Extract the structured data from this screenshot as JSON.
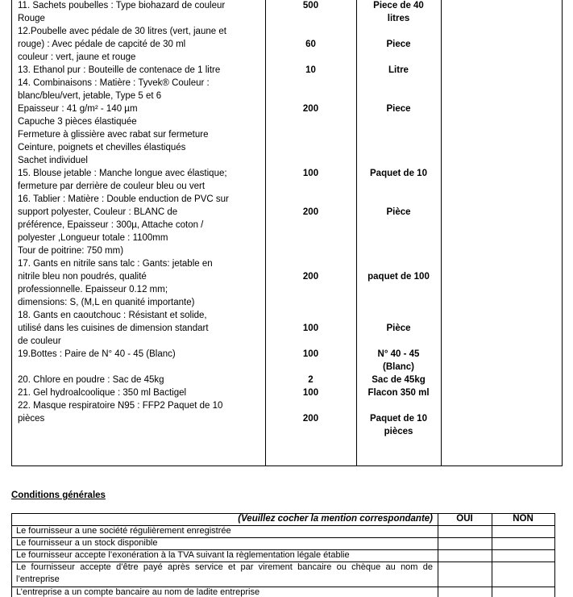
{
  "items": [
    {
      "description": [
        "11. Sachets poubelles : Type biohazard de couleur",
        "Rouge"
      ],
      "quantity": 500,
      "unit": [
        "Piece de 40",
        "litres"
      ]
    },
    {
      "description": [
        "12.Poubelle avec pédale de 30 litres (vert, jaune et",
        "rouge) : Avec pédale de capcité de 30 ml",
        "couleur : vert, jaune et rouge"
      ],
      "quantity": 60,
      "unit": [
        "Piece"
      ]
    },
    {
      "description": [
        "13. Ethanol pur : Bouteille de contenace de 1 litre"
      ],
      "quantity": 10,
      "unit": [
        "Litre"
      ]
    },
    {
      "description": [
        "14. Combinaisons : Matière : Tyvek® Couleur :",
        "blanc/bleu/vert, jetable, Type 5 et 6",
        "Epaisseur : 41 g/m² - 140 µm",
        "Capuche 3 pièces élastiquée",
        "Fermeture à glissière avec rabat sur fermeture",
        "Ceinture, poignets et chevilles élastiqués",
        "Sachet individuel"
      ],
      "quantity": 200,
      "unit": [
        "Piece"
      ]
    },
    {
      "description": [
        "15. Blouse jetable : Manche longue avec élastique;",
        "fermeture par derrière de couleur bleu ou vert"
      ],
      "quantity": 100,
      "unit": [
        "Paquet de 10"
      ]
    },
    {
      "description": [
        "16. Tablier : Matière : Double enduction de PVC sur",
        "support polyester, Couleur : BLANC de",
        "préférence, Epaisseur : 300µ, Attache coton /",
        "polyester ,Longueur totale : 1100mm",
        "Tour de poitrine: 750 mm)"
      ],
      "quantity": 200,
      "unit": [
        "Pièce"
      ]
    },
    {
      "description": [
        "17. Gants en nitrile sans talc : Gants: jetable en",
        "nitrile bleu non poudrés, qualité",
        "professionnelle. Epaisseur 0.12 mm;",
        "dimensions: S, (M,L en quanité importante)"
      ],
      "quantity": 200,
      "unit": [
        "paquet de 100"
      ]
    },
    {
      "description": [
        "18. Gants en caoutchouc : Résistant et solide,",
        "utilisé dans les cuisines de dimension standart",
        "de couleur"
      ],
      "quantity": 100,
      "unit": [
        "Pièce"
      ]
    },
    {
      "description": [
        "19.Bottes : Paire de N° 40 - 45 (Blanc)"
      ],
      "quantity": 100,
      "unit": [
        "N° 40 - 45",
        "(Blanc)"
      ]
    },
    {
      "description": [
        "20. Chlore en poudre : Sac de 45kg"
      ],
      "quantity": 2,
      "unit": [
        "Sac de 45kg"
      ]
    },
    {
      "description": [
        "21. Gel hydroalcoolique : 350 ml Bactigel"
      ],
      "quantity": 100,
      "unit": [
        "Flacon 350 ml"
      ]
    },
    {
      "description": [
        "22. Masque respiratoire N95 : FFP2 Paquet de 10",
        "pièces"
      ],
      "quantity": 200,
      "unit": [
        "Paquet de 10",
        "pièces"
      ]
    }
  ],
  "conditions": {
    "title": "Conditions générales",
    "header": {
      "note": "(Veuillez cocher la mention correspondante)",
      "yes": "OUI",
      "no": "NON"
    },
    "rows": [
      "Le fournisseur a une société régulièrement enregistrée",
      "Le fournisseur a un stock disponible",
      "Le fournisseur accepte l’exonération à la TVA suivant la règlementation légale établie",
      "Le fournisseur accepte d’être payé après service et par virement bancaire ou chèque au nom de l’entreprise",
      "L’entreprise a un compte bancaire au nom de ladite entreprise"
    ]
  }
}
